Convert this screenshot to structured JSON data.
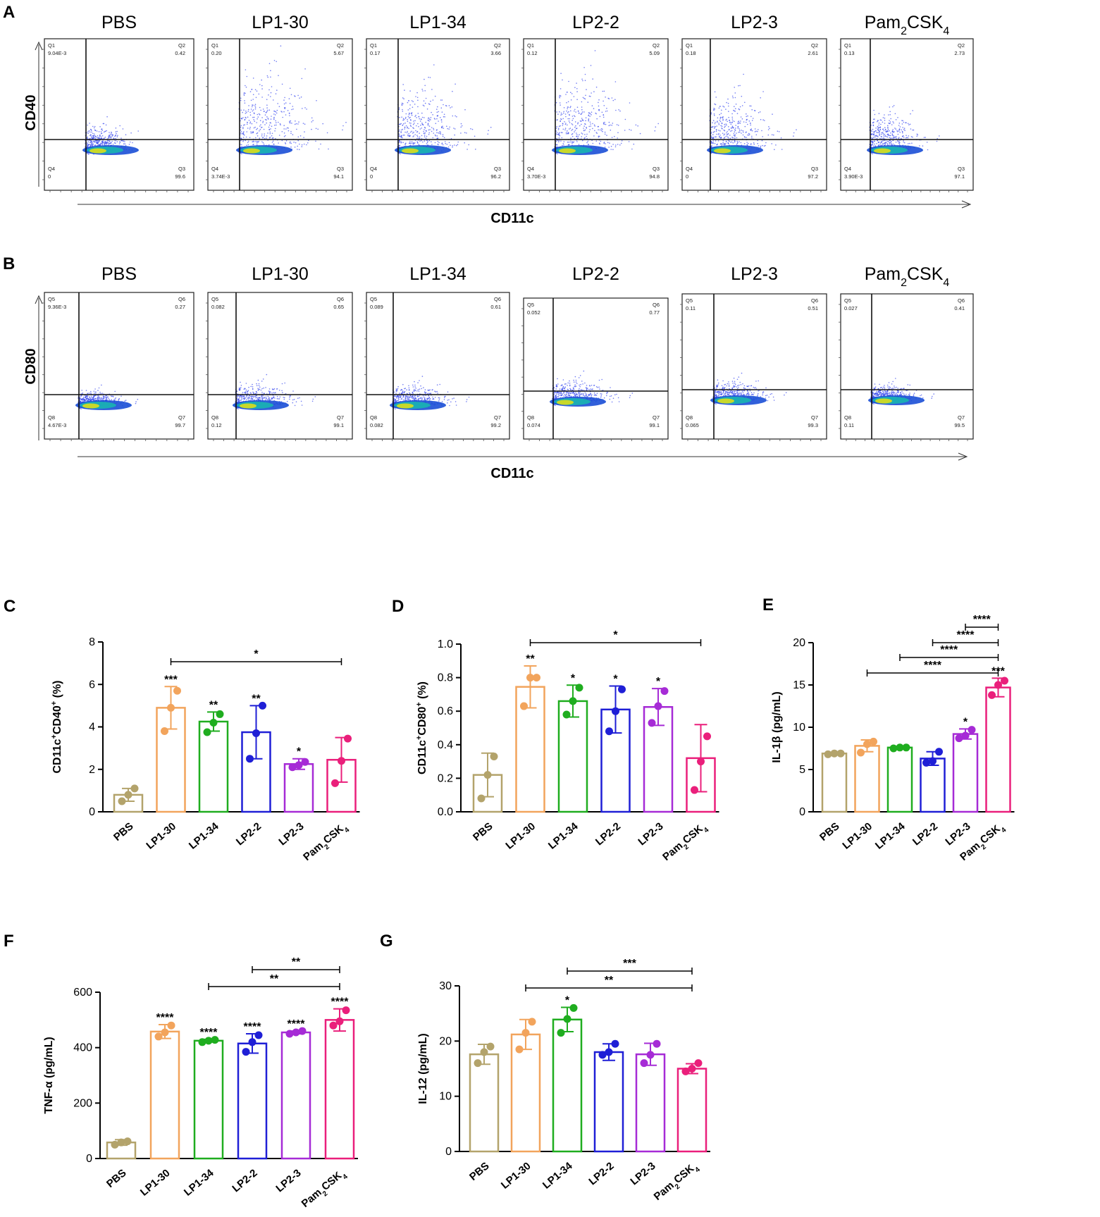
{
  "flow_panels": [
    {
      "letter": "A",
      "y_marker": "CD40",
      "x_marker": "CD11c",
      "plots": [
        {
          "title": "PBS",
          "ul": "Q1",
          "ul_val": "9.04E-3",
          "ur": "Q2",
          "ur_val": "0.42",
          "ll": "Q4",
          "ll_val": "0",
          "lr": "Q3",
          "lr_val": "99.6"
        },
        {
          "title": "LP1-30",
          "ul": "Q1",
          "ul_val": "0.20",
          "ur": "Q2",
          "ur_val": "5.67",
          "ll": "Q4",
          "ll_val": "3.74E-3",
          "lr": "Q3",
          "lr_val": "94.1"
        },
        {
          "title": "LP1-34",
          "ul": "Q1",
          "ul_val": "0.17",
          "ur": "Q2",
          "ur_val": "3.66",
          "ll": "Q4",
          "ll_val": "0",
          "lr": "Q3",
          "lr_val": "96.2"
        },
        {
          "title": "LP2-2",
          "ul": "Q1",
          "ul_val": "0.12",
          "ur": "Q2",
          "ur_val": "5.09",
          "ll": "Q4",
          "ll_val": "3.70E-3",
          "lr": "Q3",
          "lr_val": "94.8"
        },
        {
          "title": "LP2-3",
          "ul": "Q1",
          "ul_val": "0.18",
          "ur": "Q2",
          "ur_val": "2.61",
          "ll": "Q4",
          "ll_val": "0",
          "lr": "Q3",
          "lr_val": "97.2"
        },
        {
          "title": "Pam",
          "title_sub1": "2",
          "title_mid": "CSK",
          "title_sub2": "4",
          "ul": "Q1",
          "ul_val": "0.13",
          "ur": "Q2",
          "ur_val": "2.73",
          "ll": "Q4",
          "ll_val": "3.90E-3",
          "lr": "Q3",
          "lr_val": "97.1"
        }
      ]
    },
    {
      "letter": "B",
      "y_marker": "CD80",
      "x_marker": "CD11c",
      "plots": [
        {
          "title": "PBS",
          "ul": "Q5",
          "ul_val": "9.36E-3",
          "ur": "Q6",
          "ur_val": "0.27",
          "ll": "Q8",
          "ll_val": "4.67E-3",
          "lr": "Q7",
          "lr_val": "99.7"
        },
        {
          "title": "LP1-30",
          "ul": "Q5",
          "ul_val": "0.082",
          "ur": "Q6",
          "ur_val": "0.65",
          "ll": "Q8",
          "ll_val": "0.12",
          "lr": "Q7",
          "lr_val": "99.1"
        },
        {
          "title": "LP1-34",
          "ul": "Q5",
          "ul_val": "0.089",
          "ur": "Q6",
          "ur_val": "0.61",
          "ll": "Q8",
          "ll_val": "0.082",
          "lr": "Q7",
          "lr_val": "99.2"
        },
        {
          "title": "LP2-2",
          "ul": "Q5",
          "ul_val": "0.052",
          "ur": "Q6",
          "ur_val": "0.77",
          "ll": "Q8",
          "ll_val": "0.074",
          "lr": "Q7",
          "lr_val": "99.1"
        },
        {
          "title": "LP2-3",
          "ul": "Q5",
          "ul_val": "0.11",
          "ur": "Q6",
          "ur_val": "0.51",
          "ll": "Q8",
          "ll_val": "0.065",
          "lr": "Q7",
          "lr_val": "99.3"
        },
        {
          "title": "Pam",
          "title_sub1": "2",
          "title_mid": "CSK",
          "title_sub2": "4",
          "ul": "Q5",
          "ul_val": "0.027",
          "ur": "Q6",
          "ur_val": "0.41",
          "ll": "Q8",
          "ll_val": "0.11",
          "lr": "Q7",
          "lr_val": "99.5"
        }
      ]
    }
  ],
  "chart_data": [
    {
      "panel": "C",
      "type": "bar",
      "categories": [
        "PBS",
        "LP1-30",
        "LP1-34",
        "LP2-2",
        "LP2-3",
        "Pam2CSK4"
      ],
      "ylabel": "CD11c+CD40+ (%)",
      "ylim": [
        0,
        8
      ],
      "yticks": [
        "0",
        "2",
        "4",
        "6",
        "8"
      ],
      "values": [
        0.8,
        4.9,
        4.25,
        3.75,
        2.25,
        2.45
      ],
      "errors": [
        0.3,
        1.0,
        0.45,
        1.25,
        0.25,
        1.05
      ],
      "points": [
        [
          0.5,
          0.8,
          1.1
        ],
        [
          3.8,
          4.9,
          5.7
        ],
        [
          3.75,
          4.2,
          4.6
        ],
        [
          2.5,
          3.7,
          5.0
        ],
        [
          2.1,
          2.2,
          2.35
        ],
        [
          1.35,
          2.4,
          3.45
        ]
      ],
      "stars": [
        "",
        "***",
        "**",
        "**",
        "*",
        ""
      ],
      "brackets": [
        {
          "from": 1,
          "to": 5,
          "label": "*",
          "level": 0
        }
      ]
    },
    {
      "panel": "D",
      "type": "bar",
      "categories": [
        "PBS",
        "LP1-30",
        "LP1-34",
        "LP2-2",
        "LP2-3",
        "Pam2CSK4"
      ],
      "ylabel": "CD11c+CD80+ (%)",
      "ylim": [
        0,
        1.0
      ],
      "yticks": [
        "0.0",
        "0.2",
        "0.4",
        "0.6",
        "0.8",
        "1.0"
      ],
      "values": [
        0.22,
        0.745,
        0.66,
        0.61,
        0.625,
        0.32
      ],
      "errors": [
        0.13,
        0.125,
        0.095,
        0.14,
        0.11,
        0.2
      ],
      "points": [
        [
          0.08,
          0.22,
          0.33
        ],
        [
          0.63,
          0.8,
          0.8
        ],
        [
          0.58,
          0.66,
          0.74
        ],
        [
          0.48,
          0.6,
          0.73
        ],
        [
          0.53,
          0.63,
          0.72
        ],
        [
          0.13,
          0.3,
          0.45
        ]
      ],
      "stars": [
        "",
        "**",
        "*",
        "*",
        "*",
        ""
      ],
      "brackets": [
        {
          "from": 1,
          "to": 5,
          "label": "*",
          "level": 0
        }
      ]
    },
    {
      "panel": "E",
      "type": "bar",
      "categories": [
        "PBS",
        "LP1-30",
        "LP1-34",
        "LP2-2",
        "LP2-3",
        "Pam2CSK4"
      ],
      "ylabel": "IL-1β (pg/mL)",
      "ylim": [
        0,
        20
      ],
      "yticks": [
        "0",
        "5",
        "10",
        "15",
        "20"
      ],
      "values": [
        6.9,
        7.8,
        7.6,
        6.3,
        9.2,
        14.7
      ],
      "errors": [
        0.1,
        0.7,
        0.1,
        0.8,
        0.6,
        1.1
      ],
      "points": [
        [
          6.8,
          6.9,
          6.9
        ],
        [
          7.0,
          8.0,
          8.3
        ],
        [
          7.5,
          7.6,
          7.6
        ],
        [
          5.8,
          6.0,
          7.1
        ],
        [
          8.7,
          9.0,
          9.7
        ],
        [
          13.8,
          15.0,
          15.5
        ]
      ],
      "stars": [
        "",
        "",
        "",
        "",
        "*",
        "***"
      ],
      "brackets": [
        {
          "from": 1,
          "to": 5,
          "label": "****",
          "level": 0
        },
        {
          "from": 2,
          "to": 5,
          "label": "****",
          "level": 1
        },
        {
          "from": 3,
          "to": 5,
          "label": "****",
          "level": 2
        },
        {
          "from": 4,
          "to": 5,
          "label": "****",
          "level": 3
        }
      ]
    },
    {
      "panel": "F",
      "type": "bar",
      "categories": [
        "PBS",
        "LP1-30",
        "LP1-34",
        "LP2-2",
        "LP2-3",
        "Pam2CSK4"
      ],
      "ylabel": "TNF-α (pg/mL)",
      "ylim": [
        0,
        600
      ],
      "yticks": [
        "0",
        "200",
        "400",
        "600"
      ],
      "values": [
        58,
        458,
        425,
        415,
        455,
        500
      ],
      "errors": [
        10,
        25,
        5,
        35,
        5,
        40
      ],
      "points": [
        [
          50,
          58,
          62
        ],
        [
          440,
          455,
          480
        ],
        [
          420,
          425,
          428
        ],
        [
          385,
          420,
          445
        ],
        [
          450,
          455,
          460
        ],
        [
          480,
          495,
          535
        ]
      ],
      "stars": [
        "",
        "****",
        "****",
        "****",
        "****",
        "****"
      ],
      "brackets": [
        {
          "from": 2,
          "to": 5,
          "label": "**",
          "level": 0
        },
        {
          "from": 3,
          "to": 5,
          "label": "**",
          "level": 1
        }
      ]
    },
    {
      "panel": "G",
      "type": "bar",
      "categories": [
        "PBS",
        "LP1-30",
        "LP1-34",
        "LP2-2",
        "LP2-3",
        "Pam2CSK4"
      ],
      "ylabel": "IL-12 (pg/mL)",
      "ylim": [
        0,
        30
      ],
      "yticks": [
        "0",
        "10",
        "20",
        "30"
      ],
      "values": [
        17.6,
        21.2,
        23.9,
        18.0,
        17.6,
        15.0
      ],
      "errors": [
        1.8,
        2.7,
        2.2,
        1.5,
        2.0,
        0.9
      ],
      "points": [
        [
          16.0,
          18.0,
          19.0
        ],
        [
          18.5,
          21.5,
          23.5
        ],
        [
          21.5,
          24.0,
          26.0
        ],
        [
          17.5,
          18.0,
          19.5
        ],
        [
          16.0,
          17.5,
          19.5
        ],
        [
          14.5,
          15.0,
          16.0
        ]
      ],
      "stars": [
        "",
        "",
        "*",
        "",
        "",
        ""
      ],
      "brackets": [
        {
          "from": 1,
          "to": 5,
          "label": "**",
          "level": 0
        },
        {
          "from": 2,
          "to": 5,
          "label": "***",
          "level": 1
        }
      ]
    }
  ],
  "colors": [
    "#b3a36b",
    "#f2a45c",
    "#1fad1f",
    "#1f1fd6",
    "#a62bd6",
    "#ea1f7b"
  ],
  "cat_base": "Pam",
  "cat_sub1": "2",
  "cat_mid": "CSK",
  "cat_sub2": "4"
}
